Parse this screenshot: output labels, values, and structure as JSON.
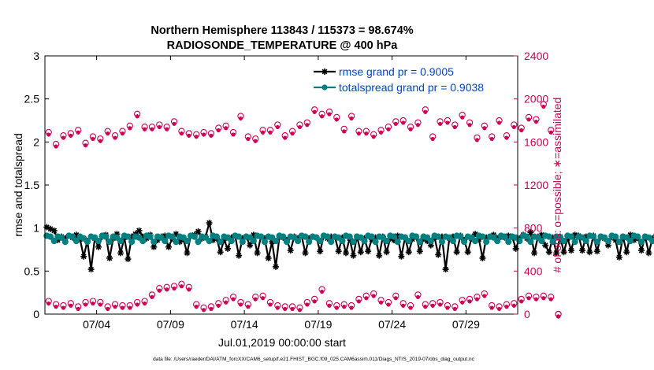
{
  "chart_data": {
    "type": "line",
    "title_line1": "Northern Hemisphere 113843 / 115373 = 98.674%",
    "title_line2": "RADIOSONDE_TEMPERATURE @ 400 hPa",
    "xlabel": "Jul.01,2019 00:00:00 start",
    "ylabel_left": "rmse and totalspread",
    "ylabel_right": "# of obs: o=possible; ∗=assimilated",
    "footnote": "data file: /Users/raeder/DAI/ATM_forcXX/CAM6_setup/f.e21.FHIST_BGC.f09_025.CAM6assim.011/Diags_NTrS_2019-07/obs_diag_output.nc",
    "x_ticks": [
      "07/04",
      "07/09",
      "07/14",
      "07/19",
      "07/24",
      "07/29"
    ],
    "x_tick_days": [
      3.5,
      8.5,
      13.5,
      18.5,
      23.5,
      28.5
    ],
    "xlim_days": [
      0,
      32
    ],
    "ylim_left": [
      0,
      3
    ],
    "yticks_left": [
      "0",
      "0.5",
      "1",
      "1.5",
      "2",
      "2.5",
      "3"
    ],
    "ylim_right": [
      0,
      2400
    ],
    "yticks_right": [
      "0",
      "400",
      "800",
      "1200",
      "1600",
      "2000",
      "2400"
    ],
    "colors": {
      "rmse": "#000000",
      "spread": "#008080",
      "obs": "#cc0055",
      "legend_text": "#0044cc",
      "axis": "#000000"
    },
    "legend": [
      {
        "name": "rmse grand pr = 0.9005",
        "color": "#000000"
      },
      {
        "name": "totalspread grand pr = 0.9038",
        "color": "#008080"
      }
    ],
    "series": [
      {
        "name": "rmse",
        "axis": "left",
        "marker": "asterisk",
        "x_step_days": 0.25,
        "x_start_days": 0.125,
        "values": [
          1.01,
          0.99,
          0.97,
          0.86,
          0.9,
          0.88,
          0.91,
          0.89,
          0.92,
          0.87,
          0.67,
          0.85,
          0.52,
          0.88,
          0.78,
          0.9,
          0.92,
          0.65,
          0.88,
          0.93,
          0.71,
          0.89,
          0.64,
          0.9,
          0.93,
          0.97,
          0.9,
          0.88,
          0.92,
          0.78,
          0.86,
          0.9,
          0.91,
          0.78,
          0.88,
          0.93,
          0.84,
          0.87,
          0.71,
          0.91,
          0.92,
          0.96,
          0.88,
          0.9,
          1.06,
          0.86,
          0.88,
          0.72,
          0.86,
          0.76,
          0.89,
          0.91,
          0.68,
          0.88,
          0.9,
          0.8,
          0.92,
          0.71,
          0.9,
          0.88,
          0.65,
          0.84,
          0.55,
          0.9,
          0.89,
          0.86,
          0.74,
          0.9,
          0.88,
          0.91,
          0.71,
          0.88,
          0.9,
          0.89,
          0.73,
          0.91,
          0.88,
          0.9,
          0.9,
          0.73,
          0.89,
          0.71,
          0.88,
          0.68,
          0.9,
          0.72,
          0.88,
          0.73,
          0.87,
          0.89,
          0.68,
          0.9,
          0.72,
          0.88,
          0.86,
          0.91,
          0.67,
          0.89,
          0.72,
          0.87,
          0.9,
          0.73,
          0.88,
          0.85,
          0.8,
          0.89,
          0.69,
          0.9,
          0.52,
          0.88,
          0.9,
          0.72,
          0.91,
          0.86,
          0.72,
          0.88,
          0.93,
          0.87,
          0.65,
          0.89,
          0.9,
          0.92,
          0.88,
          0.9,
          0.89,
          0.91,
          0.9,
          0.76,
          0.88,
          0.92,
          0.88,
          0.95,
          0.71,
          0.9,
          0.92,
          0.8,
          0.72,
          0.89,
          0.71,
          0.9,
          0.72,
          0.88,
          0.74,
          0.92,
          0.91,
          0.74,
          0.9,
          0.72,
          0.91,
          0.73,
          0.9,
          0.88,
          0.8,
          0.9,
          0.86,
          0.66,
          0.9,
          0.72,
          0.92,
          0.86,
          0.89,
          0.74,
          0.9,
          0.71,
          0.88,
          0.89,
          0.72,
          0.91,
          0.68,
          0.9,
          0.87,
          0.91,
          0.74,
          0.89,
          0.91,
          0.72,
          0.93,
          0.92,
          0.78,
          0.89,
          0.82,
          0.9,
          0.71,
          0.94,
          0.86,
          0.84,
          0.9,
          0.76,
          0.89,
          0.72,
          0.91,
          1.03,
          0.9,
          0.71,
          0.88,
          0.72,
          0.9,
          0.86,
          0.71,
          0.88,
          0.72,
          0.73
        ]
      },
      {
        "name": "totalspread",
        "axis": "left",
        "marker": "circle-filled",
        "x_step_days": 0.25,
        "x_start_days": 0.125,
        "values": [
          0.91,
          0.9,
          0.85,
          0.9,
          0.89,
          0.84,
          0.91,
          0.9,
          0.85,
          0.9,
          0.88,
          0.84,
          0.9,
          0.89,
          0.85,
          0.91,
          0.9,
          0.84,
          0.9,
          0.89,
          0.85,
          0.91,
          0.9,
          0.84,
          0.9,
          0.89,
          0.85,
          0.91,
          0.9,
          0.84,
          0.9,
          0.89,
          0.85,
          0.91,
          0.9,
          0.84,
          0.9,
          0.89,
          0.85,
          0.91,
          0.9,
          0.84,
          0.9,
          0.89,
          0.85,
          0.91,
          0.9,
          0.84,
          0.9,
          0.89,
          0.85,
          0.91,
          0.9,
          0.84,
          0.9,
          0.89,
          0.85,
          0.91,
          0.9,
          0.84,
          0.9,
          0.89,
          0.85,
          0.91,
          0.9,
          0.84,
          0.9,
          0.89,
          0.85,
          0.91,
          0.9,
          0.84,
          0.9,
          0.89,
          0.85,
          0.91,
          0.9,
          0.84,
          0.9,
          0.89,
          0.85,
          0.91,
          0.9,
          0.84,
          0.9,
          0.89,
          0.85,
          0.91,
          0.9,
          0.84,
          0.9,
          0.89,
          0.85,
          0.91,
          0.9,
          0.84,
          0.9,
          0.89,
          0.85,
          0.91,
          0.9,
          0.84,
          0.9,
          0.89,
          0.85,
          0.91,
          0.9,
          0.84,
          0.9,
          0.89,
          0.85,
          0.91,
          0.9,
          0.84,
          0.9,
          0.89,
          0.85,
          0.91,
          0.9,
          0.84,
          0.9,
          0.89,
          0.85,
          0.91,
          0.9,
          0.84,
          0.9,
          0.89,
          0.85,
          0.91,
          0.9,
          0.84,
          0.9,
          0.89,
          0.85,
          0.91,
          0.9,
          0.84,
          0.9,
          0.89,
          0.85,
          0.91,
          0.9,
          0.84,
          0.9,
          0.89,
          0.85,
          0.91,
          0.9,
          0.84,
          0.9,
          0.89,
          0.85,
          0.91,
          0.9,
          0.84,
          0.9,
          0.89,
          0.85,
          0.91,
          0.9,
          0.84,
          0.9,
          0.89,
          0.85,
          0.91,
          0.9,
          0.84,
          0.9,
          0.89,
          0.85,
          0.91,
          0.9,
          0.84,
          0.9,
          0.89,
          0.85,
          0.91,
          0.9,
          0.84,
          0.9,
          0.89,
          0.85,
          0.91,
          0.9,
          0.84,
          0.9,
          0.89,
          0.85,
          0.91,
          0.9,
          0.84,
          0.9,
          0.89,
          0.85,
          0.91,
          0.9,
          0.84,
          0.9,
          0.89,
          0.85,
          0.91,
          0.9,
          0.84,
          0.9,
          0.89,
          0.85,
          0.91
        ]
      },
      {
        "name": "obs possible (00Z/12Z)",
        "axis": "right",
        "marker": "circle-open",
        "x_step_days": 0.5,
        "x_start_days": 0.25,
        "values": [
          1690,
          1580,
          1660,
          1680,
          1710,
          1590,
          1650,
          1630,
          1700,
          1660,
          1700,
          1750,
          1860,
          1740,
          1740,
          1760,
          1740,
          1790,
          1700,
          1680,
          1670,
          1690,
          1680,
          1730,
          1750,
          1690,
          1840,
          1650,
          1630,
          1710,
          1710,
          1760,
          1660,
          1700,
          1760,
          1780,
          1900,
          1860,
          1880,
          1830,
          1720,
          1840,
          1700,
          1700,
          1670,
          1710,
          1740,
          1790,
          1800,
          1740,
          1780,
          1900,
          1650,
          1790,
          1800,
          1760,
          1850,
          1780,
          1640,
          1750,
          1650,
          1800,
          1660,
          1760,
          1730,
          1830,
          1810,
          1950,
          1710,
          0
        ]
      },
      {
        "name": "obs possible (06Z/18Z)",
        "axis": "right",
        "marker": "circle-open",
        "x_step_days": 0.5,
        "x_start_days": 0.25,
        "values": [
          120,
          90,
          80,
          100,
          70,
          110,
          120,
          110,
          70,
          90,
          80,
          80,
          110,
          120,
          180,
          240,
          250,
          260,
          280,
          250,
          90,
          60,
          70,
          100,
          130,
          160,
          110,
          90,
          160,
          170,
          110,
          80,
          70,
          70,
          60,
          110,
          140,
          230,
          100,
          80,
          90,
          80,
          140,
          170,
          190,
          130,
          110,
          170,
          100,
          80,
          180,
          90,
          100,
          110,
          80,
          70,
          130,
          140,
          160,
          190,
          80,
          70,
          90,
          100,
          140,
          170,
          160,
          170,
          160,
          0
        ]
      }
    ]
  }
}
